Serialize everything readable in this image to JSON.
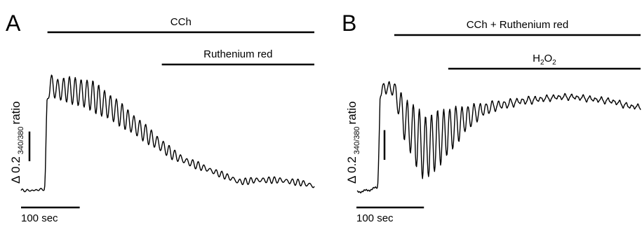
{
  "chart_data": [
    {
      "type": "line",
      "panel_label": "A",
      "treatments": [
        {
          "label": "CCh",
          "start": 45,
          "end": 500
        },
        {
          "label": "Ruthenium red",
          "start": 240,
          "end": 500
        }
      ],
      "ylabel": {
        "main": "Δ 0.2",
        "sub": "340/380",
        "tail": "ratio"
      },
      "scalebar_label": "100 sec",
      "x_units": "sec",
      "y_units": "Δ ratio 340/380",
      "scalebar": {
        "x_sec": 100,
        "y_ratio": 0.2
      },
      "xlim": [
        0,
        500
      ],
      "ylim": [
        0,
        0.85
      ],
      "series": [
        {
          "x": [
            0,
            20,
            40,
            41,
            44,
            50,
            60,
            80,
            100,
            120,
            140,
            160,
            180,
            200,
            220,
            240,
            260,
            280,
            300,
            320,
            340,
            360,
            370,
            380,
            400,
            420,
            440,
            460,
            480,
            500
          ],
          "y": [
            0.02,
            0.02,
            0.03,
            0.08,
            0.62,
            0.74,
            0.7,
            0.7,
            0.68,
            0.66,
            0.61,
            0.56,
            0.5,
            0.44,
            0.38,
            0.32,
            0.26,
            0.22,
            0.19,
            0.16,
            0.13,
            0.1,
            0.08,
            0.08,
            0.09,
            0.09,
            0.09,
            0.08,
            0.07,
            0.05
          ],
          "osc_amplitude": [
            0,
            0,
            0,
            0,
            0,
            0.06,
            0.07,
            0.08,
            0.09,
            0.1,
            0.09,
            0.08,
            0.07,
            0.06,
            0.05,
            0.04,
            0.03,
            0.02,
            0.02,
            0.015,
            0.015,
            0.015,
            0.015,
            0.015,
            0.015,
            0.015,
            0.015,
            0.015,
            0.015,
            0.015
          ],
          "osc_period_sec": 10
        }
      ]
    },
    {
      "type": "line",
      "panel_label": "B",
      "treatments": [
        {
          "label": "CCh + Ruthenium red",
          "start": 55,
          "end": 420
        },
        {
          "label": "H2O2",
          "label_main": "H",
          "label_sub1": "2",
          "label_mid": "O",
          "label_sub2": "2",
          "start": 135,
          "end": 420
        }
      ],
      "ylabel": {
        "main": "Δ 0.2",
        "sub": "340/380",
        "tail": "ratio"
      },
      "scalebar_label": "100 sec",
      "x_units": "sec",
      "y_units": "Δ ratio 340/380",
      "scalebar": {
        "x_sec": 100,
        "y_ratio": 0.2
      },
      "xlim": [
        0,
        420
      ],
      "ylim": [
        0,
        0.85
      ],
      "series": [
        {
          "x": [
            0,
            15,
            30,
            31,
            34,
            40,
            55,
            70,
            85,
            100,
            115,
            130,
            145,
            160,
            175,
            190,
            205,
            220,
            240,
            260,
            280,
            300,
            320,
            340,
            360,
            380,
            400,
            420
          ],
          "y": [
            0.01,
            0.02,
            0.04,
            0.08,
            0.65,
            0.72,
            0.7,
            0.5,
            0.4,
            0.3,
            0.35,
            0.4,
            0.45,
            0.5,
            0.54,
            0.57,
            0.59,
            0.6,
            0.62,
            0.63,
            0.64,
            0.65,
            0.65,
            0.64,
            0.63,
            0.62,
            0.59,
            0.58
          ],
          "osc_amplitude": [
            0,
            0,
            0,
            0,
            0,
            0.04,
            0.05,
            0.14,
            0.2,
            0.22,
            0.2,
            0.17,
            0.13,
            0.09,
            0.06,
            0.04,
            0.03,
            0.025,
            0.02,
            0.02,
            0.015,
            0.015,
            0.015,
            0.015,
            0.015,
            0.015,
            0.015,
            0.015
          ],
          "osc_period_sec": 9
        }
      ]
    }
  ]
}
